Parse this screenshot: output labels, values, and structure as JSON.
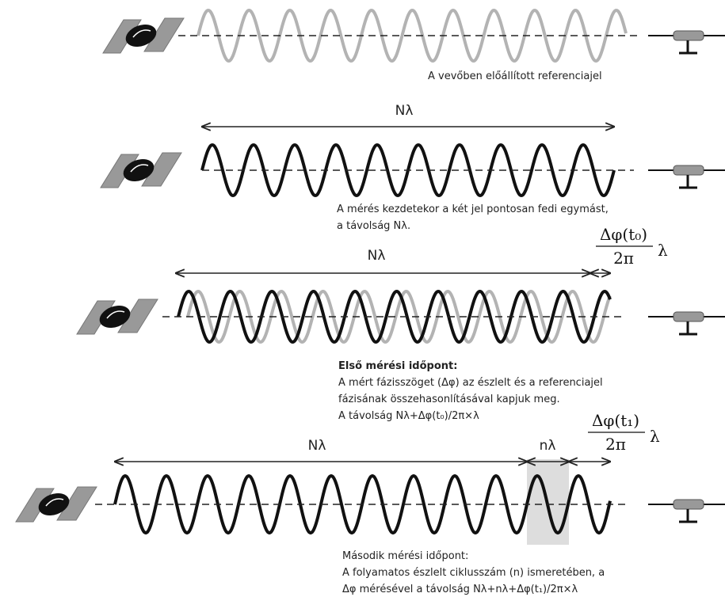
{
  "rows": [
    {
      "caption": [
        "A vevőben előállított referenciajel"
      ]
    },
    {
      "distance_label": "Nλ",
      "caption": [
        "A mérés kezdetekor a két jel pontosan fedi egymást,",
        "a távolság Nλ."
      ]
    },
    {
      "distance_label": "Nλ",
      "formula": {
        "numerator": "Δφ(t₀)",
        "denominator": "2π",
        "factor": "λ"
      },
      "caption_title": "Első mérési időpont:",
      "caption": [
        "A mért fázisszöget (Δφ) az észlelt és a referenciajel",
        "fázisának összehasonlításával kapjuk meg.",
        "A távolság Nλ+Δφ(t₀)/2π×λ"
      ]
    },
    {
      "distance_label": "Nλ",
      "cycle_label": "nλ",
      "formula": {
        "numerator": "Δφ(t₁)",
        "denominator": "2π",
        "factor": "λ"
      },
      "caption_title": "Második mérési időpont:",
      "caption": [
        "A folyamatos észlelt ciklusszám (n) ismeretében, a",
        "Δφ mérésével a távolság Nλ+nλ+Δφ(t₁)/2π×λ"
      ]
    }
  ]
}
